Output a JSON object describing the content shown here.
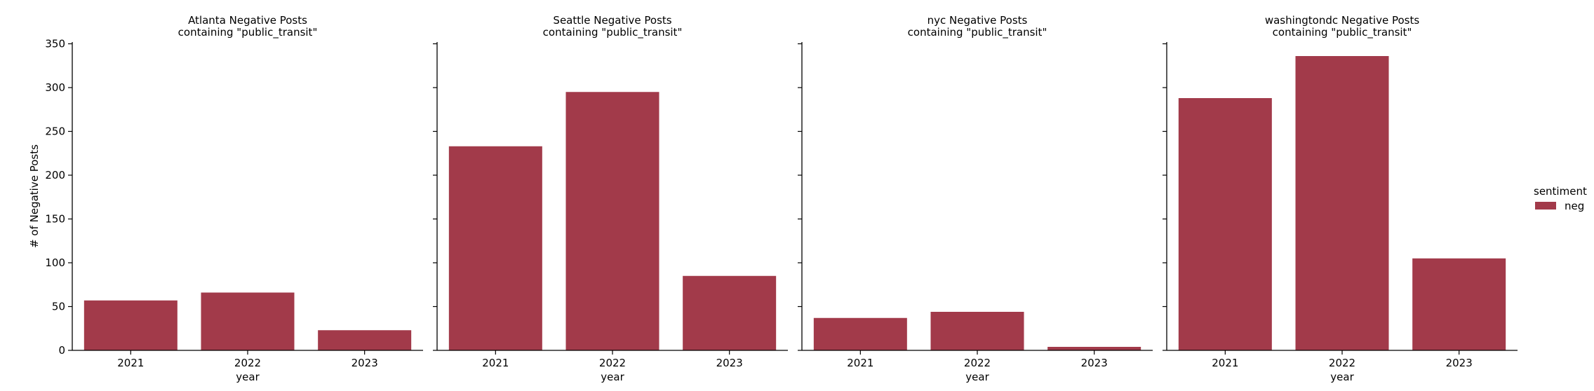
{
  "chart_data": [
    {
      "type": "bar",
      "title": "Atlanta Negative Posts\ncontaining \"public_transit\"",
      "categories": [
        "2021",
        "2022",
        "2023"
      ],
      "series": [
        {
          "name": "neg",
          "values": [
            57,
            66,
            23
          ]
        }
      ],
      "xlabel": "year",
      "ylabel": "# of Negative Posts",
      "ylim": [
        0,
        352
      ],
      "yticks": [
        0,
        50,
        100,
        150,
        200,
        250,
        300,
        350
      ]
    },
    {
      "type": "bar",
      "title": "Seattle Negative Posts\ncontaining \"public_transit\"",
      "categories": [
        "2021",
        "2022",
        "2023"
      ],
      "series": [
        {
          "name": "neg",
          "values": [
            233,
            295,
            85
          ]
        }
      ],
      "xlabel": "year",
      "ylabel": "",
      "ylim": [
        0,
        352
      ],
      "yticks": [
        0,
        50,
        100,
        150,
        200,
        250,
        300,
        350
      ]
    },
    {
      "type": "bar",
      "title": "nyc Negative Posts\ncontaining \"public_transit\"",
      "categories": [
        "2021",
        "2022",
        "2023"
      ],
      "series": [
        {
          "name": "neg",
          "values": [
            37,
            44,
            4
          ]
        }
      ],
      "xlabel": "year",
      "ylabel": "",
      "ylim": [
        0,
        352
      ],
      "yticks": [
        0,
        50,
        100,
        150,
        200,
        250,
        300,
        350
      ]
    },
    {
      "type": "bar",
      "title": "washingtondc Negative Posts\ncontaining \"public_transit\"",
      "categories": [
        "2021",
        "2022",
        "2023"
      ],
      "series": [
        {
          "name": "neg",
          "values": [
            288,
            336,
            105
          ]
        }
      ],
      "xlabel": "year",
      "ylabel": "",
      "ylim": [
        0,
        352
      ],
      "yticks": [
        0,
        50,
        100,
        150,
        200,
        250,
        300,
        350
      ]
    }
  ],
  "legend": {
    "title": "sentiment",
    "entries": [
      {
        "label": "neg",
        "color": "#a23a4a"
      }
    ],
    "placement": "right"
  },
  "bar_color": "#a23a4a"
}
